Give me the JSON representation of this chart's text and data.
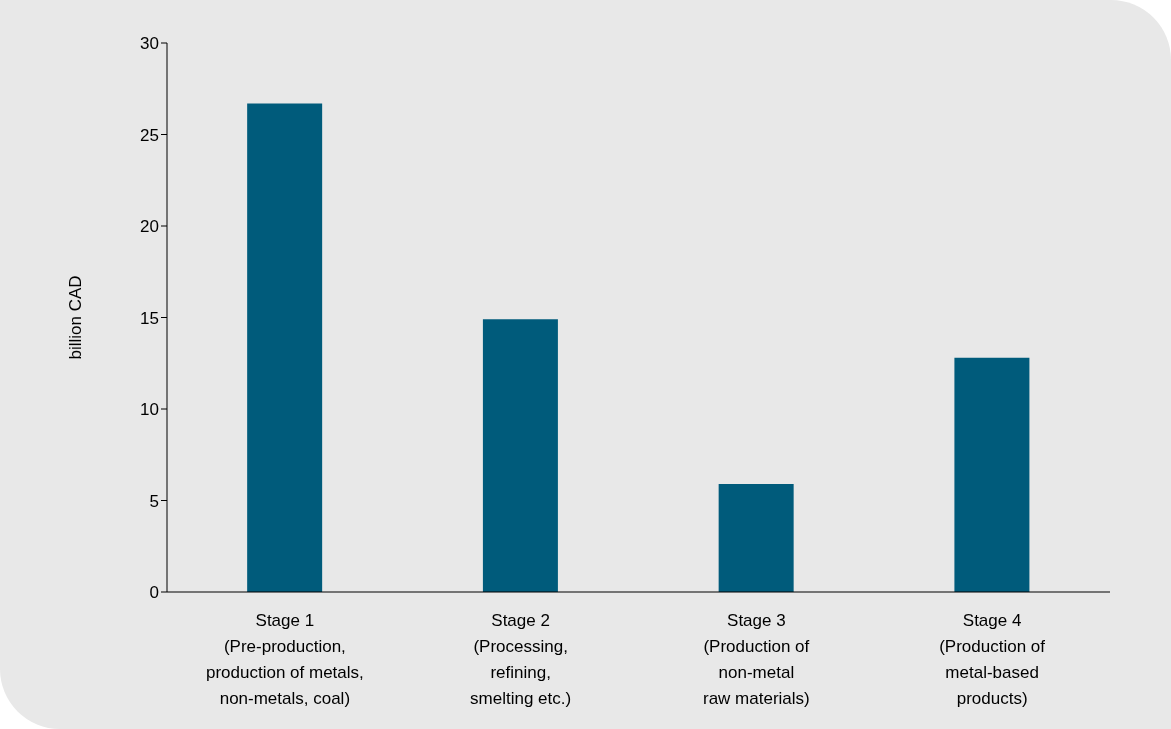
{
  "chart_data": {
    "type": "bar",
    "ylabel": "billion CAD",
    "categories": [
      "Stage 1\n(Pre-production,\nproduction of metals,\nnon-metals, coal)",
      "Stage 2\n(Processing,\nrefining,\nsmelting etc.)",
      "Stage 3\n(Production of\nnon-metal\nraw materials)",
      "Stage 4\n(Production of\nmetal-based\nproducts)"
    ],
    "values": [
      26.7,
      14.9,
      5.9,
      12.8
    ],
    "color": "#005b7b",
    "ylim": [
      0,
      30
    ],
    "yticks": [
      0,
      5,
      10,
      15,
      20,
      25,
      30
    ],
    "grid": false,
    "legend": false
  }
}
